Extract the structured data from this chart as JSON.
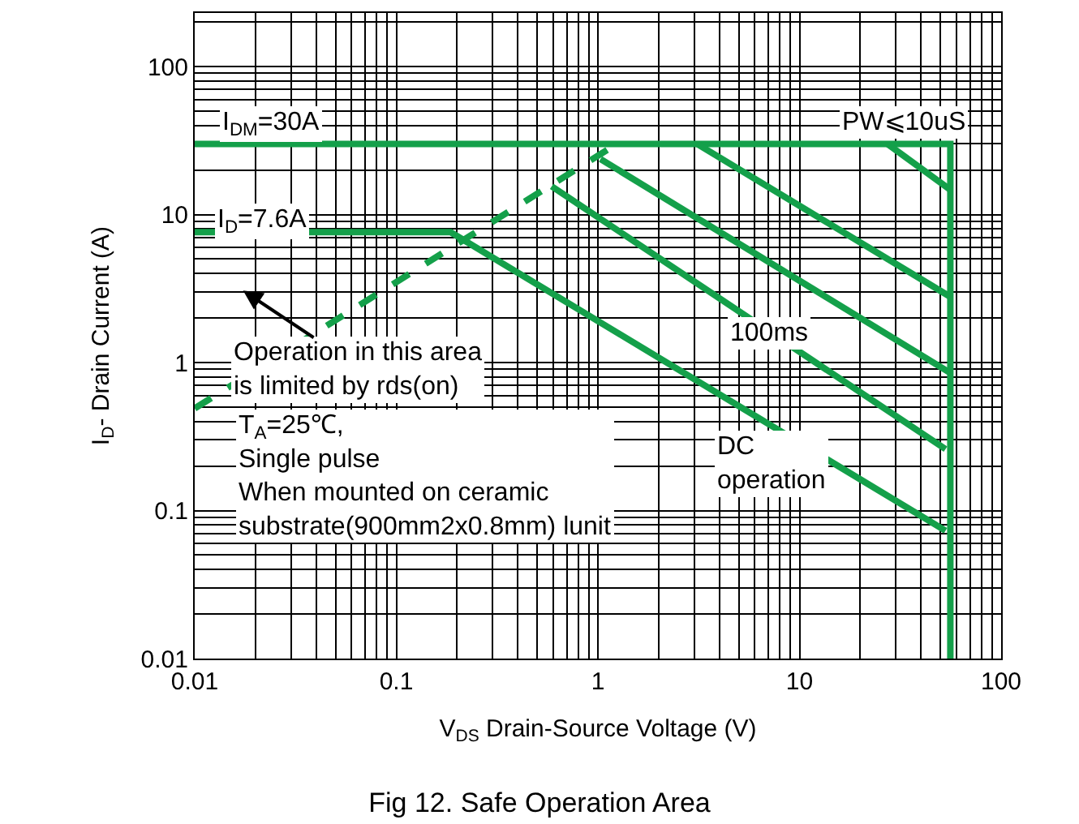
{
  "chart_data": {
    "type": "line",
    "title": "Fig 12. Safe Operation Area",
    "xlabel": "V$_{DS}$ Drain-Source Voltage (V)",
    "ylabel": "I$_{D}$- Drain Current (A)",
    "log": "xy",
    "grid": true,
    "marker": "none",
    "xlim": [
      0.01,
      100
    ],
    "xticks": [
      0.01,
      0.1,
      1,
      10,
      100
    ],
    "ylim": [
      0.01,
      230
    ],
    "yticks": [
      0.01,
      0.1,
      1,
      10,
      100
    ],
    "series": [
      {
        "color": "#14a04a",
        "x": [
          0.01,
          56,
          56
        ],
        "values": [
          30,
          30,
          0.01
        ]
      },
      {
        "color": "#14a04a",
        "x": [
          0.01,
          0.186,
          53
        ],
        "values": [
          7.6,
          7.6,
          0.073
        ]
      },
      {
        "color": "#14a04a",
        "x": [
          0.01,
          1.24
        ],
        "values": [
          0.49,
          30
        ],
        "line_style": "dashed"
      },
      {
        "color": "#14a04a",
        "x": [
          27.3,
          56
        ],
        "values": [
          30,
          14.7
        ]
      },
      {
        "color": "#14a04a",
        "x": [
          3.1,
          56
        ],
        "values": [
          30,
          2.78
        ]
      },
      {
        "color": "#14a04a",
        "x": [
          1.03,
          56
        ],
        "values": [
          23.7,
          0.85
        ]
      },
      {
        "color": "#14a04a",
        "x": [
          0.59,
          53
        ],
        "values": [
          15.5,
          0.26
        ]
      }
    ],
    "annotations": [
      "I$_{DM}$=30A",
      "I$_{D}$=7.6A",
      "PW⩽10uS",
      "100ms",
      "DC\noperation",
      "Operation in this area\nis limited by rds(on)",
      "T$_{A}$=25℃,\nSingle pulse\nWhen mounted on ceramic\nsubstrate(900mm2x0.8mm) lunit"
    ]
  }
}
